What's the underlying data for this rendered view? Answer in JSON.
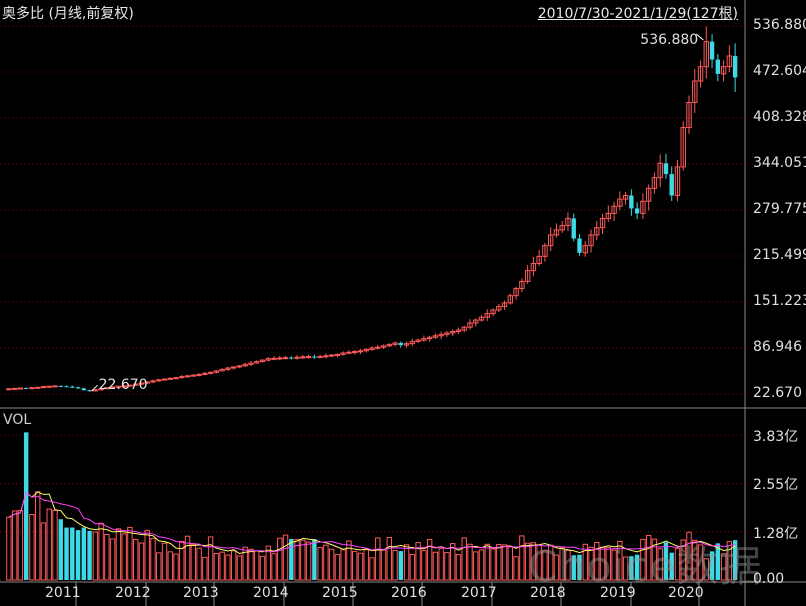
{
  "header": {
    "title": "奥多比 (月线,前复权)",
    "range": "2010/7/30-2021/1/29(127根)"
  },
  "volume_label": "VOL",
  "watermark": "Choice数据",
  "annotations": {
    "high": "536.880",
    "low": "22.670"
  },
  "colors": {
    "up": "#ff5a5a",
    "down": "#3dd9e6",
    "ma5": "#ffff66",
    "ma10": "#ff44ff",
    "grid": "#8a0000",
    "axis": "#888888"
  },
  "chart_data": {
    "type": "candlestick",
    "title": "奥多比 (月线,前复权)",
    "price_ticks": [
      "536.880",
      "472.604",
      "408.328",
      "344.051",
      "279.775",
      "215.499",
      "151.223",
      "86.946",
      "22.670"
    ],
    "price_ylim": [
      22.67,
      536.88
    ],
    "volume_ticks": [
      "3.83亿",
      "2.55亿",
      "1.28亿",
      "0.00"
    ],
    "volume_ylim": [
      0,
      3.83
    ],
    "x_labels": [
      "2011",
      "2012",
      "2013",
      "2014",
      "2015",
      "2016",
      "2017",
      "2018",
      "2019",
      "2020"
    ],
    "grid": true,
    "price_series": [
      30.0,
      30.5,
      31.0,
      30.5,
      31.5,
      32.0,
      33.0,
      33.5,
      34.0,
      33.5,
      33.0,
      32.0,
      30.5,
      28.0,
      27.0,
      28.5,
      30.0,
      31.5,
      32.5,
      33.5,
      34.0,
      35.0,
      36.5,
      38.0,
      39.5,
      41.0,
      42.5,
      43.5,
      44.5,
      45.5,
      47.0,
      48.0,
      49.0,
      50.0,
      51.5,
      53.0,
      55.0,
      57.0,
      59.0,
      60.5,
      62.0,
      64.0,
      66.0,
      68.0,
      70.0,
      72.0,
      72.5,
      73.0,
      73.5,
      73.0,
      74.0,
      74.5,
      75.0,
      74.0,
      75.0,
      76.0,
      77.0,
      78.0,
      80.0,
      81.0,
      82.0,
      83.0,
      85.0,
      87.0,
      88.0,
      90.0,
      92.0,
      94.0,
      91.0,
      93.0,
      96.0,
      98.0,
      100.0,
      102.0,
      104.0,
      106.0,
      108.0,
      110.0,
      112.0,
      116.0,
      122.0,
      126.0,
      130.0,
      135.0,
      140.0,
      145.0,
      150.0,
      160.0,
      170.0,
      180.0,
      195.0,
      205.0,
      215.0,
      230.0,
      245.0,
      252.0,
      258.0,
      268.0,
      240.0,
      220.0,
      230.0,
      245.0,
      255.0,
      268.0,
      275.0,
      285.0,
      295.0,
      300.0,
      282.0,
      275.0,
      292.0,
      310.0,
      325.0,
      345.0,
      330.0,
      300.0,
      340.0,
      395.0,
      430.0,
      460.0,
      480.0,
      515.0,
      490.0,
      470.0,
      480.0,
      495.0,
      465.0
    ]
  }
}
